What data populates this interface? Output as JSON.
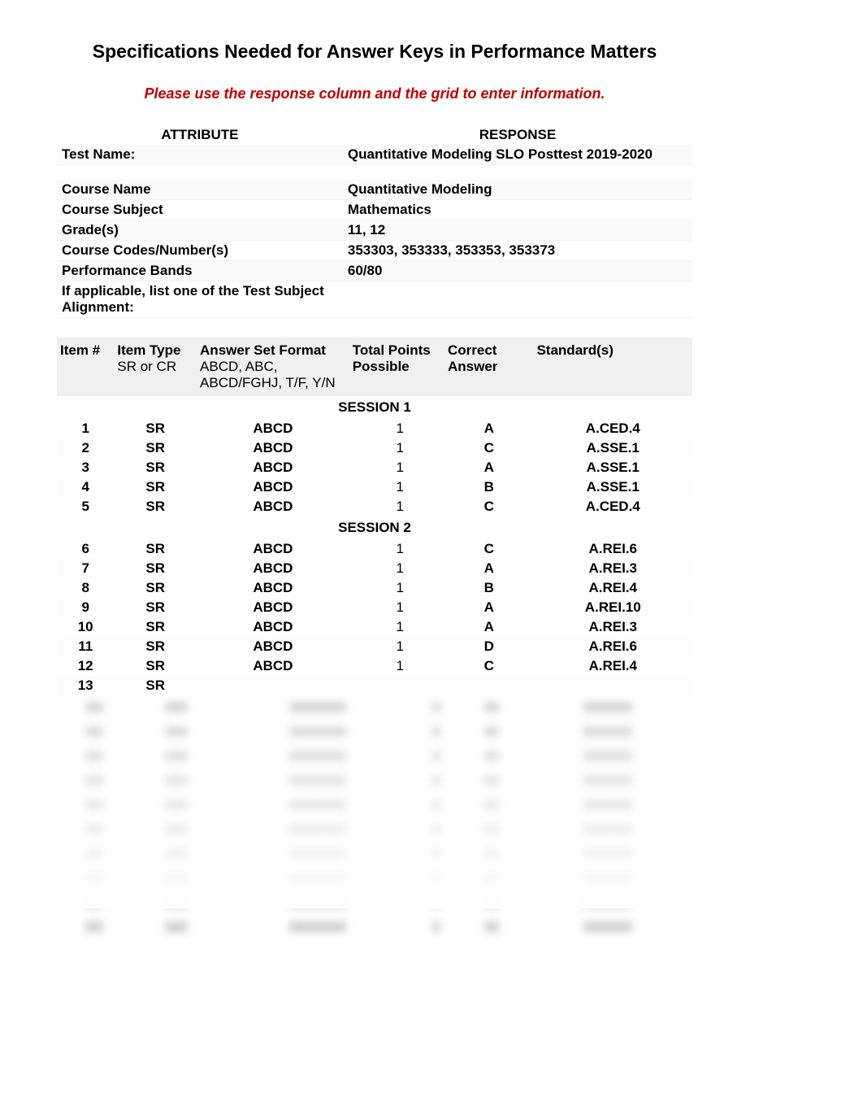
{
  "title": "Specifications Needed for Answer Keys in Performance Matters",
  "subtitle": "Please use the response column and the grid to enter information.",
  "colors": {
    "subtitle": "#c00000",
    "header_bg": "#f0f0f0",
    "text": "#000000",
    "background": "#ffffff"
  },
  "attributes": {
    "header_left": "ATTRIBUTE",
    "header_right": "RESPONSE",
    "rows": [
      {
        "label": "Test Name:",
        "value": "Quantitative Modeling SLO Posttest 2019-2020"
      }
    ],
    "rows2": [
      {
        "label": "Course Name",
        "value": "Quantitative Modeling"
      },
      {
        "label": "Course Subject",
        "value": "Mathematics"
      },
      {
        "label": "Grade(s)",
        "value": "11, 12"
      },
      {
        "label": "Course Codes/Number(s)",
        "value": "353303, 353333, 353353, 353373"
      },
      {
        "label": "Performance Bands",
        "value": "60/80"
      },
      {
        "label": "If applicable, list one of the Test Subject Alignment:",
        "value": ""
      }
    ]
  },
  "items_header": {
    "item": "Item #",
    "type": "Item Type",
    "type_sub": "SR or CR",
    "format": "Answer Set Format",
    "format_sub": "ABCD, ABC, ABCD/FGHJ, T/F, Y/N",
    "points": "Total Points Possible",
    "answer": "Correct Answer",
    "standard": "Standard(s)"
  },
  "session1_label": "SESSION 1",
  "session2_label": "SESSION 2",
  "session1": [
    {
      "n": "1",
      "type": "SR",
      "format": "ABCD",
      "points": "1",
      "answer": "A",
      "std": "A.CED.4"
    },
    {
      "n": "2",
      "type": "SR",
      "format": "ABCD",
      "points": "1",
      "answer": "C",
      "std": "A.SSE.1"
    },
    {
      "n": "3",
      "type": "SR",
      "format": "ABCD",
      "points": "1",
      "answer": "A",
      "std": "A.SSE.1"
    },
    {
      "n": "4",
      "type": "SR",
      "format": "ABCD",
      "points": "1",
      "answer": "B",
      "std": "A.SSE.1"
    },
    {
      "n": "5",
      "type": "SR",
      "format": "ABCD",
      "points": "1",
      "answer": "C",
      "std": "A.CED.4"
    }
  ],
  "session2": [
    {
      "n": "6",
      "type": "SR",
      "format": "ABCD",
      "points": "1",
      "answer": "C",
      "std": "A.REI.6"
    },
    {
      "n": "7",
      "type": "SR",
      "format": "ABCD",
      "points": "1",
      "answer": "A",
      "std": "A.REI.3"
    },
    {
      "n": "8",
      "type": "SR",
      "format": "ABCD",
      "points": "1",
      "answer": "B",
      "std": "A.REI.4"
    },
    {
      "n": "9",
      "type": "SR",
      "format": "ABCD",
      "points": "1",
      "answer": "A",
      "std": "A.REI.10"
    },
    {
      "n": "10",
      "type": "SR",
      "format": "ABCD",
      "points": "1",
      "answer": "A",
      "std": "A.REI.3"
    },
    {
      "n": "11",
      "type": "SR",
      "format": "ABCD",
      "points": "1",
      "answer": "D",
      "std": "A.REI.6"
    },
    {
      "n": "12",
      "type": "SR",
      "format": "ABCD",
      "points": "1",
      "answer": "C",
      "std": "A.REI.4"
    },
    {
      "n": "13",
      "type": "SR",
      "format": "",
      "points": "",
      "answer": "",
      "std": ""
    }
  ],
  "blurred_rows": 10,
  "blurred_widths": [
    22,
    28,
    70,
    10,
    18,
    60
  ]
}
